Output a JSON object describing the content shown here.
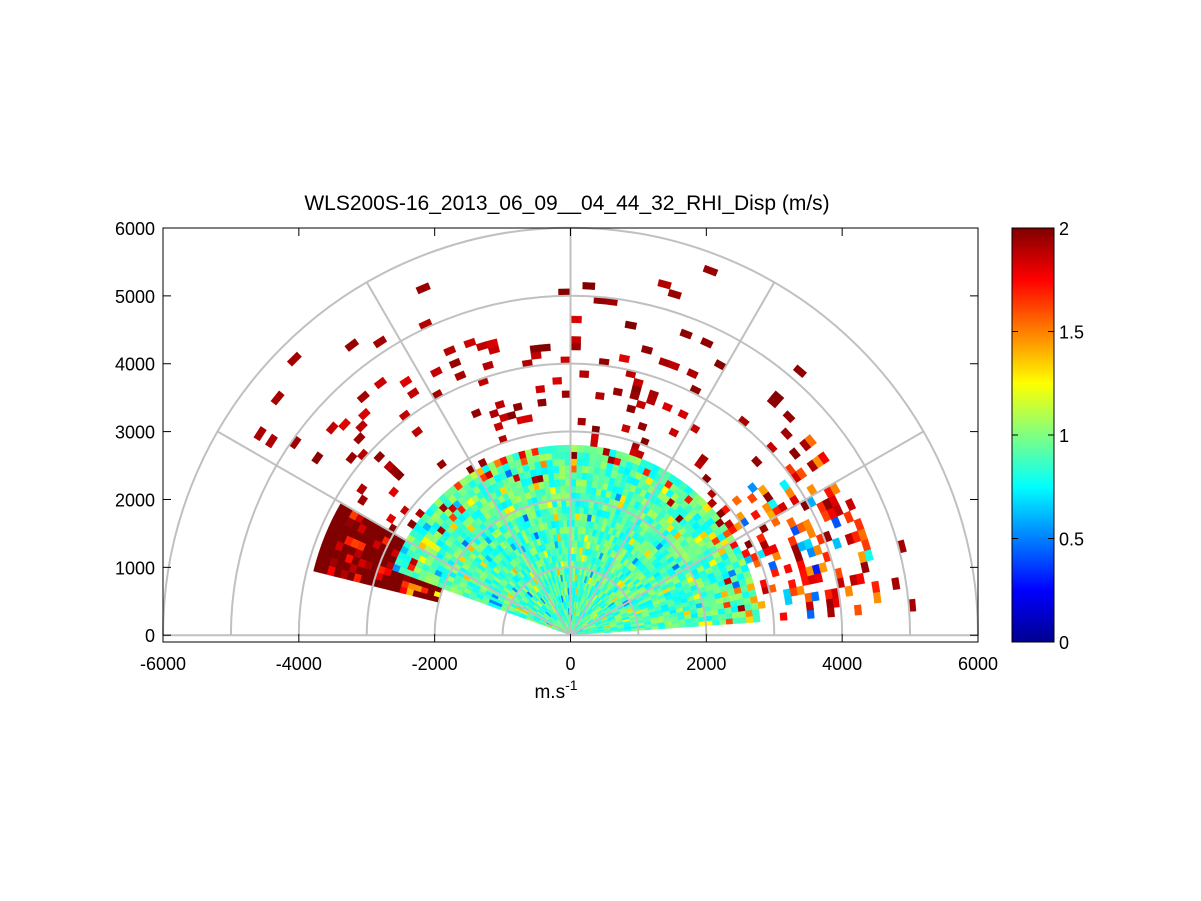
{
  "chart_data": {
    "type": "heatmap",
    "subtype": "polar-rhi",
    "title": "WLS200S-16_2013_06_09__04_44_32_RHI_Disp (m/s)",
    "xlabel": "m.s",
    "xlabel_superscript": "-1",
    "ylabel": "",
    "xlim": [
      -6000,
      6000
    ],
    "ylim": [
      -100,
      6000
    ],
    "xticks": [
      "-6000",
      "-4000",
      "-2000",
      "0",
      "2000",
      "4000",
      "6000"
    ],
    "yticks": [
      "0",
      "1000",
      "2000",
      "3000",
      "4000",
      "5000",
      "6000"
    ],
    "polar_grid": {
      "range_rings": [
        1000,
        2000,
        3000,
        4000,
        5000,
        6000
      ],
      "spokes_deg": [
        0,
        30,
        60,
        90,
        120,
        150,
        180
      ]
    },
    "colorbar": {
      "min": 0,
      "max": 2,
      "ticks": [
        "0",
        "0.5",
        "1",
        "1.5",
        "2"
      ],
      "colormap": "jet"
    },
    "field_summary": [
      {
        "region": "near-field (range < 2800 m, elevation 4-160 deg)",
        "approx_value": 0.9
      },
      {
        "region": "far-field left (range 2000-3900 m, elevation 150-170 deg)",
        "approx_value": 2.0
      },
      {
        "region": "scattered outer returns (range 3000-5800 m)",
        "approx_value": 2.0
      }
    ]
  },
  "colors": {
    "grid": "#c0c0c0",
    "axes": "#000000",
    "background": "#ffffff"
  }
}
